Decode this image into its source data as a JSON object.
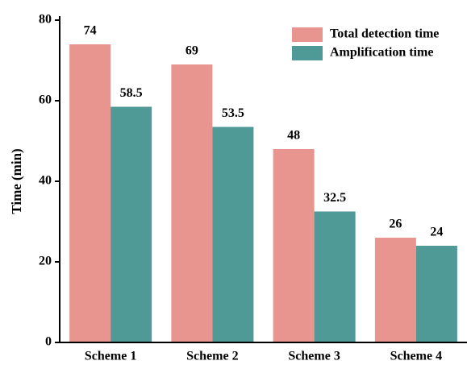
{
  "chart_data": {
    "type": "bar",
    "y_label": "Time (min)",
    "categories": [
      "Scheme 1",
      "Scheme 2",
      "Scheme 3",
      "Scheme 4"
    ],
    "series": [
      {
        "name": "Total detection time",
        "color": "#e8958f",
        "values": [
          74,
          69,
          48,
          26
        ]
      },
      {
        "name": "Amplification time",
        "color": "#4f9996",
        "values": [
          58.5,
          53.5,
          32.5,
          24
        ]
      }
    ],
    "ylim": [
      0,
      80
    ],
    "yticks": [
      0,
      20,
      40,
      60,
      80
    ],
    "legend": "upper right"
  }
}
